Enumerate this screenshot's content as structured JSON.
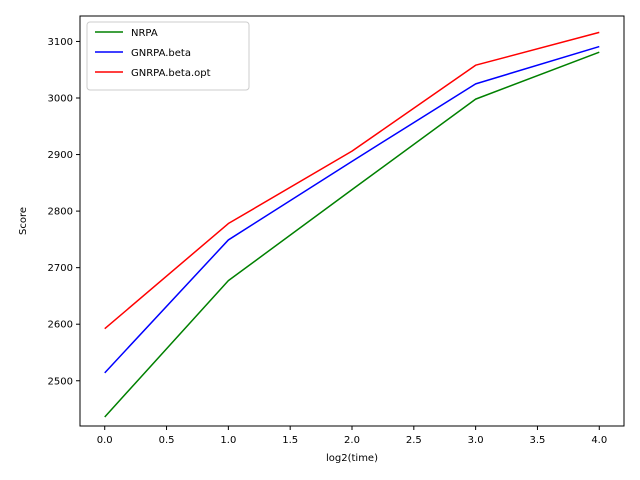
{
  "chart_data": {
    "type": "line",
    "title": "",
    "xlabel": "log2(time)",
    "ylabel": "Score",
    "x": [
      0,
      1,
      2,
      3,
      4
    ],
    "xlim": [
      -0.2,
      4.2
    ],
    "ylim": [
      2420,
      3145
    ],
    "xticks": [
      0.0,
      0.5,
      1.0,
      1.5,
      2.0,
      2.5,
      3.0,
      3.5,
      4.0
    ],
    "xtick_labels": [
      "0.0",
      "0.5",
      "1.0",
      "1.5",
      "2.0",
      "2.5",
      "3.0",
      "3.5",
      "4.0"
    ],
    "yticks": [
      2500,
      2600,
      2700,
      2800,
      2900,
      3000,
      3100
    ],
    "ytick_labels": [
      "2500",
      "2600",
      "2700",
      "2800",
      "2900",
      "3000",
      "3100"
    ],
    "grid": false,
    "legend_position": "upper-left",
    "series": [
      {
        "name": "NRPA",
        "color": "#008000",
        "values": [
          2436,
          2677,
          2838,
          2998,
          3081
        ]
      },
      {
        "name": "GNRPA.beta",
        "color": "#0000ff",
        "values": [
          2514,
          2749,
          2888,
          3025,
          3091
        ]
      },
      {
        "name": "GNRPA.beta.opt",
        "color": "#ff0000",
        "values": [
          2592,
          2778,
          2906,
          3058,
          3116
        ]
      }
    ]
  }
}
